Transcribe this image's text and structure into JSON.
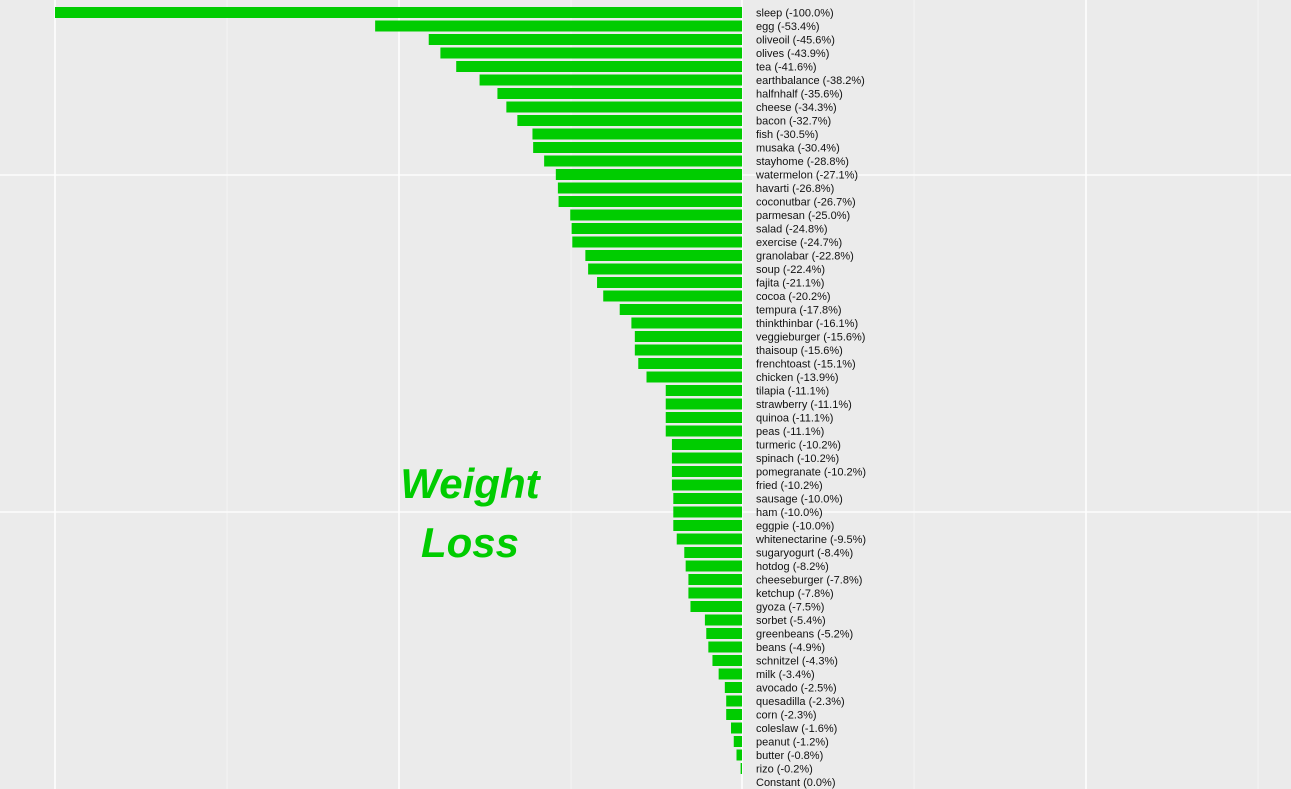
{
  "chart_data": {
    "type": "bar",
    "orientation": "horizontal",
    "annotation": [
      "Weight",
      "Loss"
    ],
    "bar_color": "#00cc00",
    "background_color": "#ebebeb",
    "grid": true,
    "xlim": [
      -100,
      0
    ],
    "categories": [
      "sleep",
      "egg",
      "oliveoil",
      "olives",
      "tea",
      "earthbalance",
      "halfnhalf",
      "cheese",
      "bacon",
      "fish",
      "musaka",
      "stayhome",
      "watermelon",
      "havarti",
      "coconutbar",
      "parmesan",
      "salad",
      "exercise",
      "granolabar",
      "soup",
      "fajita",
      "cocoa",
      "tempura",
      "thinkthinbar",
      "veggieburger",
      "thaisoup",
      "frenchtoast",
      "chicken",
      "tilapia",
      "strawberry",
      "quinoa",
      "peas",
      "turmeric",
      "spinach",
      "pomegranate",
      "fried",
      "sausage",
      "ham",
      "eggpie",
      "whitenectarine",
      "sugaryogurt",
      "hotdog",
      "cheeseburger",
      "ketchup",
      "gyoza",
      "sorbet",
      "greenbeans",
      "beans",
      "schnitzel",
      "milk",
      "avocado",
      "quesadilla",
      "corn",
      "coleslaw",
      "peanut",
      "butter",
      "rizo",
      "Constant"
    ],
    "values": [
      -100.0,
      -53.4,
      -45.6,
      -43.9,
      -41.6,
      -38.2,
      -35.6,
      -34.3,
      -32.7,
      -30.5,
      -30.4,
      -28.8,
      -27.1,
      -26.8,
      -26.7,
      -25.0,
      -24.8,
      -24.7,
      -22.8,
      -22.4,
      -21.1,
      -20.2,
      -17.8,
      -16.1,
      -15.6,
      -15.6,
      -15.1,
      -13.9,
      -11.1,
      -11.1,
      -11.1,
      -11.1,
      -10.2,
      -10.2,
      -10.2,
      -10.2,
      -10.0,
      -10.0,
      -10.0,
      -9.5,
      -8.4,
      -8.2,
      -7.8,
      -7.8,
      -7.5,
      -5.4,
      -5.2,
      -4.9,
      -4.3,
      -3.4,
      -2.5,
      -2.3,
      -2.3,
      -1.6,
      -1.2,
      -0.8,
      -0.2,
      0.0
    ],
    "labels": [
      "sleep (-100.0%)",
      "egg (-53.4%)",
      "oliveoil (-45.6%)",
      "olives (-43.9%)",
      "tea (-41.6%)",
      "earthbalance (-38.2%)",
      "halfnhalf (-35.6%)",
      "cheese (-34.3%)",
      "bacon (-32.7%)",
      "fish (-30.5%)",
      "musaka (-30.4%)",
      "stayhome (-28.8%)",
      "watermelon (-27.1%)",
      "havarti (-26.8%)",
      "coconutbar (-26.7%)",
      "parmesan (-25.0%)",
      "salad (-24.8%)",
      "exercise (-24.7%)",
      "granolabar (-22.8%)",
      "soup (-22.4%)",
      "fajita (-21.1%)",
      "cocoa (-20.2%)",
      "tempura (-17.8%)",
      "thinkthinbar (-16.1%)",
      "veggieburger (-15.6%)",
      "thaisoup (-15.6%)",
      "frenchtoast (-15.1%)",
      "chicken (-13.9%)",
      "tilapia (-11.1%)",
      "strawberry (-11.1%)",
      "quinoa (-11.1%)",
      "peas (-11.1%)",
      "turmeric (-10.2%)",
      "spinach (-10.2%)",
      "pomegranate (-10.2%)",
      "fried (-10.2%)",
      "sausage (-10.0%)",
      "ham (-10.0%)",
      "eggpie (-10.0%)",
      "whitenectarine (-9.5%)",
      "sugaryogurt (-8.4%)",
      "hotdog (-8.2%)",
      "cheeseburger (-7.8%)",
      "ketchup (-7.8%)",
      "gyoza (-7.5%)",
      "sorbet (-5.4%)",
      "greenbeans (-5.2%)",
      "beans (-4.9%)",
      "schnitzel (-4.3%)",
      "milk (-3.4%)",
      "avocado (-2.5%)",
      "quesadilla (-2.3%)",
      "corn (-2.3%)",
      "coleslaw (-1.6%)",
      "peanut (-1.2%)",
      "butter (-0.8%)",
      "rizo (-0.2%)",
      "Constant (0.0%)"
    ]
  }
}
